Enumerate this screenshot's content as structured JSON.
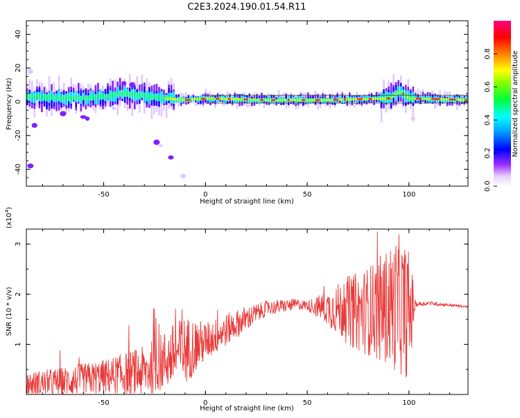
{
  "title": "C2E3.2024.190.01.54.R11",
  "colors": {
    "snr_line": "#e83a3a",
    "axis": "#000000",
    "background": "#ffffff"
  },
  "chart_data": [
    {
      "type": "heatmap",
      "xlabel": "Height of straight line (km)",
      "ylabel": "Frequency (Hz)",
      "xlim": [
        -88,
        129
      ],
      "ylim": [
        -50,
        48
      ],
      "xticks": [
        -50,
        0,
        50,
        100
      ],
      "xtick_labels": [
        "-50",
        "0",
        "50",
        "100"
      ],
      "yticks": [
        40,
        20,
        0,
        -20,
        -40
      ],
      "ytick_labels": [
        "40",
        "20",
        "0",
        "-20",
        "-40"
      ],
      "grid": false,
      "colorbar": {
        "label": "Normalized spectral amplitude",
        "range": [
          0,
          1
        ],
        "ticks": [
          0.0,
          0.2,
          0.4,
          0.6,
          0.8
        ],
        "tick_labels": [
          "0.0",
          "0.2",
          "0.4",
          "0.6",
          "0.8"
        ],
        "colormap": [
          "#ffffff",
          "#e0c8ff",
          "#9b30ff",
          "#0000ff",
          "#00bfff",
          "#00ffff",
          "#00ff00",
          "#a0ff00",
          "#ffff00",
          "#ff8000",
          "#ff0000",
          "#ff0080"
        ]
      },
      "ridge": {
        "description_points_x": [
          -88,
          -60,
          -40,
          -20,
          -10,
          0,
          30,
          60,
          90,
          95,
          100,
          129
        ],
        "center_frequency": [
          3,
          2,
          5,
          2,
          1,
          2,
          1,
          1,
          2,
          6,
          2,
          1
        ]
      }
    },
    {
      "type": "line",
      "xlabel": "Height of straight line (km)",
      "ylabel": "SNR (10 * v/v)",
      "multiplier": "(x10",
      "multiplier_exp": "4",
      "multiplier_close": ")",
      "xlim": [
        -88,
        129
      ],
      "ylim": [
        0,
        3.3
      ],
      "xticks": [
        -50,
        0,
        50,
        100
      ],
      "xtick_labels": [
        "-50",
        "0",
        "50",
        "100"
      ],
      "yticks": [
        1,
        2,
        3
      ],
      "ytick_labels": [
        "1",
        "2",
        "3"
      ],
      "grid": false,
      "series": [
        {
          "envelope_x": [
            -88,
            -70,
            -50,
            -30,
            -15,
            0,
            15,
            30,
            45,
            55,
            65,
            75,
            85,
            95,
            100,
            103,
            110,
            129
          ],
          "envelope_y": [
            0.2,
            0.25,
            0.35,
            0.45,
            0.8,
            1.05,
            1.4,
            1.72,
            1.8,
            1.75,
            1.7,
            1.65,
            1.7,
            1.8,
            1.6,
            1.8,
            1.82,
            1.75
          ],
          "noise_amp_x": [
            -88,
            -50,
            -20,
            -10,
            0,
            20,
            30,
            50,
            60,
            70,
            80,
            90,
            95,
            100,
            102,
            103,
            129
          ],
          "noise_amp_y": [
            0.25,
            0.35,
            0.6,
            0.7,
            0.4,
            0.25,
            0.15,
            0.1,
            0.35,
            0.7,
            0.9,
            1.2,
            1.4,
            1.3,
            0.6,
            0.05,
            0.02
          ]
        }
      ]
    }
  ]
}
